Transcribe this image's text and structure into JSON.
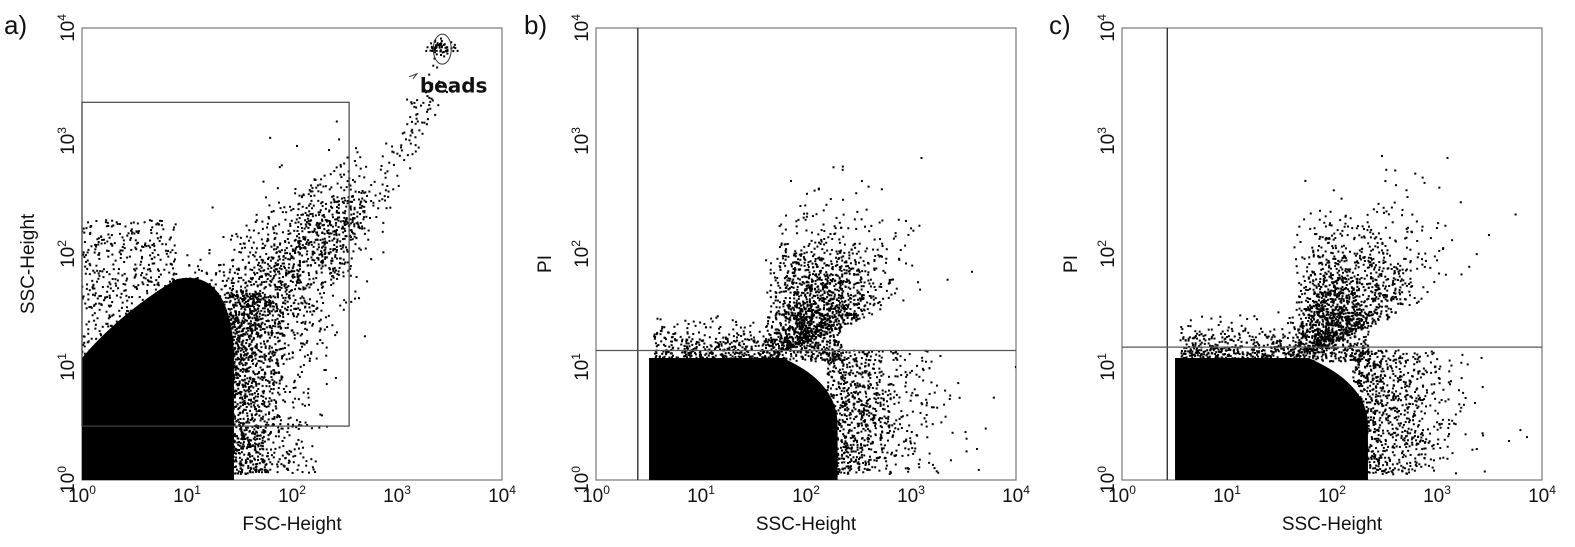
{
  "chart_data": [
    {
      "panel": "a)",
      "type": "scatter",
      "xlabel": "FSC-Height",
      "ylabel": "SSC-Height",
      "xscale": "log",
      "yscale": "log",
      "xlim": [
        1,
        10000
      ],
      "ylim": [
        1,
        10000
      ],
      "x_tick_labels": [
        {
          "base": "10",
          "exp": "0"
        },
        {
          "base": "10",
          "exp": "1"
        },
        {
          "base": "10",
          "exp": "2"
        },
        {
          "base": "10",
          "exp": "3"
        },
        {
          "base": "10",
          "exp": "4"
        }
      ],
      "y_tick_labels": [
        {
          "base": "10",
          "exp": "0"
        },
        {
          "base": "10",
          "exp": "1"
        },
        {
          "base": "10",
          "exp": "2"
        },
        {
          "base": "10",
          "exp": "3"
        },
        {
          "base": "10",
          "exp": "4"
        }
      ],
      "annotation": "beads",
      "gate_rectangle": {
        "x": [
          1,
          350
        ],
        "y": [
          3,
          2200
        ]
      },
      "dense_region": {
        "x": [
          1,
          28
        ],
        "y": [
          1,
          60
        ]
      }
    },
    {
      "panel": "b)",
      "type": "scatter",
      "xlabel": "SSC-Height",
      "ylabel": "PI",
      "xscale": "log",
      "yscale": "log",
      "xlim": [
        1,
        10000
      ],
      "ylim": [
        1,
        10000
      ],
      "x_tick_labels": [
        {
          "base": "10",
          "exp": "0"
        },
        {
          "base": "10",
          "exp": "1"
        },
        {
          "base": "10",
          "exp": "2"
        },
        {
          "base": "10",
          "exp": "3"
        },
        {
          "base": "10",
          "exp": "4"
        }
      ],
      "y_tick_labels": [
        {
          "base": "10",
          "exp": "0"
        },
        {
          "base": "10",
          "exp": "1"
        },
        {
          "base": "10",
          "exp": "2"
        },
        {
          "base": "10",
          "exp": "3"
        },
        {
          "base": "10",
          "exp": "4"
        }
      ],
      "quadrant_lines": {
        "x": 2.5,
        "y": 14
      },
      "dense_region": {
        "x": [
          3.2,
          200
        ],
        "y": [
          1,
          12
        ]
      }
    },
    {
      "panel": "c)",
      "type": "scatter",
      "xlabel": "SSC-Height",
      "ylabel": "PI",
      "xscale": "log",
      "yscale": "log",
      "xlim": [
        1,
        10000
      ],
      "ylim": [
        1,
        10000
      ],
      "x_tick_labels": [
        {
          "base": "10",
          "exp": "0"
        },
        {
          "base": "10",
          "exp": "1"
        },
        {
          "base": "10",
          "exp": "2"
        },
        {
          "base": "10",
          "exp": "3"
        },
        {
          "base": "10",
          "exp": "4"
        }
      ],
      "y_tick_labels": [
        {
          "base": "10",
          "exp": "0"
        },
        {
          "base": "10",
          "exp": "1"
        },
        {
          "base": "10",
          "exp": "2"
        },
        {
          "base": "10",
          "exp": "3"
        },
        {
          "base": "10",
          "exp": "4"
        }
      ],
      "quadrant_lines": {
        "x": 2.7,
        "y": 15
      },
      "dense_region": {
        "x": [
          3.2,
          220
        ],
        "y": [
          1,
          12
        ]
      }
    }
  ]
}
